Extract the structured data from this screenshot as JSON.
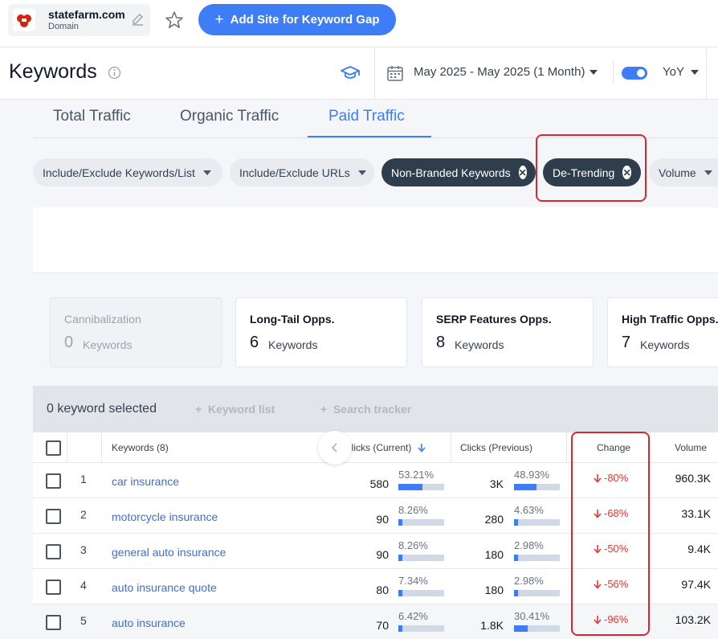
{
  "domain": {
    "name": "statefarm.com",
    "sub": "Domain"
  },
  "add_site_label": "Add Site for Keyword Gap",
  "header": {
    "title": "Keywords",
    "date_range": "May 2025 - May 2025 (1 Month)",
    "comparison": "YoY"
  },
  "tabs": [
    "Total Traffic",
    "Organic Traffic",
    "Paid Traffic"
  ],
  "filters": {
    "include_keywords": "Include/Exclude Keywords/List",
    "include_urls": "Include/Exclude URLs",
    "non_branded": "Non-Branded Keywords",
    "detrending": "De-Trending",
    "volume": "Volume"
  },
  "cards": [
    {
      "title": "Cannibalization",
      "count": "0",
      "unit": "Keywords"
    },
    {
      "title": "Long-Tail Opps.",
      "count": "6",
      "unit": "Keywords"
    },
    {
      "title": "SERP Features Opps.",
      "count": "8",
      "unit": "Keywords"
    },
    {
      "title": "High Traffic Opps.",
      "count": "7",
      "unit": "Keywords"
    }
  ],
  "toolbar": {
    "selected": "0 keyword selected",
    "keyword_list": "Keyword list",
    "search_tracker": "Search tracker"
  },
  "table": {
    "headers": {
      "keywords": "Keywords (8)",
      "clicks_current": "Clicks (Current)",
      "clicks_previous": "Clicks (Previous)",
      "change": "Change",
      "volume": "Volume"
    },
    "rows": [
      {
        "n": "1",
        "kw": "car insurance",
        "cur": "580",
        "cur_pct": "53.21%",
        "cur_frac": 0.5321,
        "prev": "3K",
        "prev_pct": "48.93%",
        "prev_frac": 0.4893,
        "change": "-80%",
        "volume": "960.3K"
      },
      {
        "n": "2",
        "kw": "motorcycle insurance",
        "cur": "90",
        "cur_pct": "8.26%",
        "cur_frac": 0.0826,
        "prev": "280",
        "prev_pct": "4.63%",
        "prev_frac": 0.0463,
        "change": "-68%",
        "volume": "33.1K"
      },
      {
        "n": "3",
        "kw": "general auto insurance",
        "cur": "90",
        "cur_pct": "8.26%",
        "cur_frac": 0.0826,
        "prev": "180",
        "prev_pct": "2.98%",
        "prev_frac": 0.0298,
        "change": "-50%",
        "volume": "9.4K"
      },
      {
        "n": "4",
        "kw": "auto insurance quote",
        "cur": "80",
        "cur_pct": "7.34%",
        "cur_frac": 0.0734,
        "prev": "180",
        "prev_pct": "2.98%",
        "prev_frac": 0.0298,
        "change": "-56%",
        "volume": "97.4K"
      },
      {
        "n": "5",
        "kw": "auto insurance",
        "cur": "70",
        "cur_pct": "6.42%",
        "cur_frac": 0.0642,
        "prev": "1.8K",
        "prev_pct": "30.41%",
        "prev_frac": 0.3041,
        "change": "-96%",
        "volume": "103.2K"
      }
    ]
  },
  "colors": {
    "accent": "#3d7df5",
    "highlight": "#d7282f",
    "negative": "#e53935",
    "chip_dark": "#2f3e4d"
  }
}
